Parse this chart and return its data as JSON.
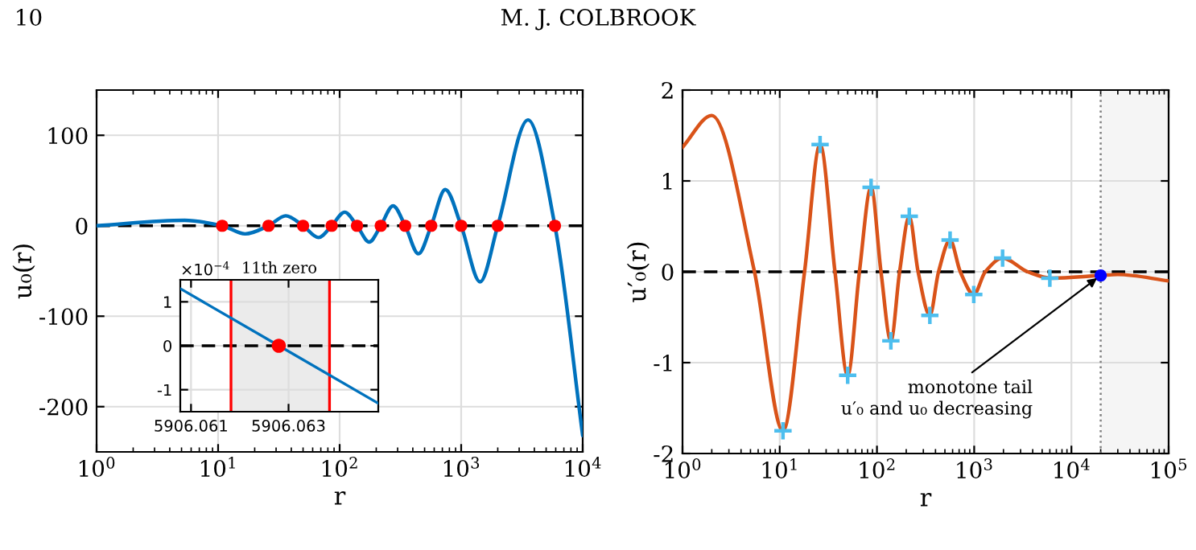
{
  "chart_data": [
    {
      "type": "line",
      "xlabel": "r",
      "ylabel": "u₀(r)",
      "log": "x",
      "grid": true,
      "xlim": [
        1,
        10000
      ],
      "ylim": [
        -250,
        150
      ],
      "xticks": [
        {
          "value": 1,
          "label": "10$^{0}$"
        },
        {
          "value": 10,
          "label": "10$^{1}$"
        },
        {
          "value": 100,
          "label": "10$^{2}$"
        },
        {
          "value": 1000,
          "label": "10$^{3}$"
        },
        {
          "value": 10000,
          "label": "10$^{4}$"
        }
      ],
      "yticks": [
        -200,
        -100,
        0,
        100
      ],
      "x": [
        1,
        5.3,
        10.8,
        16.7,
        26,
        36,
        50,
        67,
        86,
        110,
        139,
        175,
        218,
        275,
        346,
        445,
        567,
        740,
        1000,
        1430,
        2000,
        3550,
        5906,
        10000
      ],
      "series": [
        {
          "color": "#0072bd",
          "marker": "none",
          "values": [
            0,
            6,
            0,
            -9,
            0,
            11,
            0,
            -13,
            0,
            15,
            0,
            -18,
            0,
            22,
            0,
            -31,
            0,
            40,
            0,
            -62,
            0,
            117,
            0,
            -232
          ]
        },
        {
          "type": "scatter",
          "color": "#ff0000",
          "marker": "circle",
          "x": [
            10.8,
            26,
            50,
            86,
            139,
            218,
            346,
            567,
            1000,
            2000,
            5906
          ],
          "values": [
            0,
            0,
            0,
            0,
            0,
            0,
            0,
            0,
            0,
            0,
            0
          ]
        }
      ],
      "ref_lines": [
        {
          "axis": "y",
          "value": 0,
          "color": "#000000",
          "line_style": "dashed"
        }
      ],
      "annotations": [
        "10",
        "M. J. COLBROOK"
      ]
    },
    {
      "type": "line",
      "title": "11th zero",
      "grid": true,
      "xlim": [
        5906.06078,
        5906.06484
      ],
      "ylim": [
        -1.5,
        1.5
      ],
      "xticks": [
        5906.061,
        5906.063
      ],
      "yticks": [
        -1,
        0,
        1
      ],
      "x": [
        5906.06078,
        5906.06484
      ],
      "series": [
        {
          "color": "#0072bd",
          "marker": "none",
          "values": [
            1.3,
            -1.31
          ]
        },
        {
          "type": "scatter",
          "color": "#ff0000",
          "marker": "circle",
          "x": [
            5906.0628
          ],
          "values": [
            0
          ]
        }
      ],
      "ref_lines": [
        {
          "axis": "y",
          "value": 0,
          "color": "#000000",
          "line_style": "dashed"
        },
        {
          "axis": "x",
          "value": 5906.06182,
          "color": "#ff0000",
          "line_style": "solid"
        },
        {
          "axis": "x",
          "value": 5906.06384,
          "color": "#ff0000",
          "line_style": "solid"
        }
      ],
      "bands": [
        {
          "axis": "x",
          "from": 5906.06182,
          "to": 5906.06384,
          "color": "#ebebeb"
        }
      ],
      "annotations": [
        "×10$^{−4}$"
      ]
    },
    {
      "type": "line",
      "xlabel": "r",
      "ylabel": "u′₀(r)",
      "log": "x",
      "grid": true,
      "xlim": [
        1,
        100000
      ],
      "ylim": [
        -2,
        2
      ],
      "xticks": [
        {
          "value": 1,
          "label": "10$^{0}$"
        },
        {
          "value": 10,
          "label": "10$^{1}$"
        },
        {
          "value": 100,
          "label": "10$^{2}$"
        },
        {
          "value": 1000,
          "label": "10$^{3}$"
        },
        {
          "value": 10000,
          "label": "10$^{4}$"
        },
        {
          "value": 100000,
          "label": "10$^{5}$"
        }
      ],
      "yticks": [
        -2,
        -1,
        0,
        1,
        2
      ],
      "x": [
        1,
        2.0,
        5.5,
        10.8,
        18,
        26,
        37,
        50,
        66,
        87,
        110,
        139,
        171,
        215,
        265,
        350,
        430,
        565,
        720,
        990,
        1300,
        1960,
        3550,
        6200,
        20000,
        30000,
        100000
      ],
      "series": [
        {
          "color": "#d95319",
          "marker": "none",
          "values": [
            1.37,
            1.72,
            0,
            -1.75,
            0,
            1.4,
            0,
            -1.14,
            0,
            0.93,
            0,
            -0.76,
            0,
            0.61,
            0,
            -0.48,
            0,
            0.35,
            0,
            -0.25,
            0,
            0.15,
            0,
            -0.07,
            -0.04,
            -0.03,
            -0.1
          ]
        },
        {
          "type": "scatter",
          "color": "#4dbeee",
          "marker": "cross",
          "x": [
            10.8,
            26,
            50,
            87,
            139,
            215,
            350,
            565,
            990,
            1960,
            6000
          ],
          "values": [
            -1.75,
            1.4,
            -1.14,
            0.93,
            -0.76,
            0.61,
            -0.48,
            0.35,
            -0.25,
            0.15,
            -0.07
          ]
        },
        {
          "type": "scatter",
          "color": "#0000ff",
          "marker": "circle",
          "x": [
            20000
          ],
          "values": [
            -0.04
          ]
        }
      ],
      "ref_lines": [
        {
          "axis": "y",
          "value": 0,
          "color": "#000000",
          "line_style": "dashed"
        },
        {
          "axis": "x",
          "value": 20000,
          "color": "#808080",
          "line_style": "dotted"
        }
      ],
      "bands": [
        {
          "axis": "x",
          "from": 20000,
          "to": 100000,
          "color": "#f5f5f5"
        }
      ],
      "annotations": [
        {
          "text": "monotone tail\nu′₀ and u₀ decreasing",
          "x": 20000,
          "y": -0.04
        }
      ]
    }
  ]
}
